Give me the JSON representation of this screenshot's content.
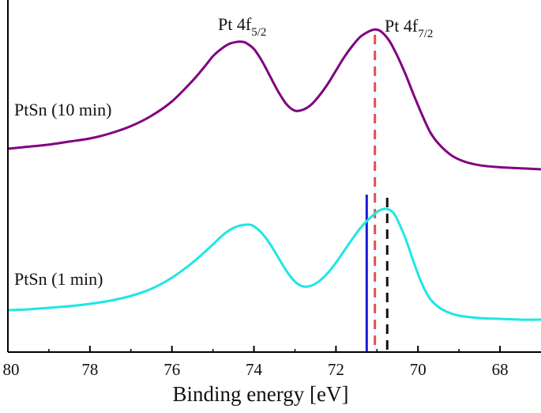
{
  "chart_data": {
    "type": "line",
    "title": "",
    "xlabel": "Binding energy [eV]",
    "ylabel": "",
    "xlim": [
      80,
      67
    ],
    "x_reversed": true,
    "xticks": [
      80,
      78,
      76,
      74,
      72,
      70,
      68
    ],
    "y_axis_visible": false,
    "grid": false,
    "legend": "none",
    "peak_labels": [
      {
        "main": "Pt 4f",
        "sub": "5/2",
        "x": 74.3
      },
      {
        "main": "Pt 4f",
        "sub": "7/2",
        "x": 71.0
      }
    ],
    "series": [
      {
        "name": "PtSn (10 min)",
        "color": "#800080",
        "x": [
          80,
          79.5,
          79,
          78.5,
          78,
          77.5,
          77,
          76.5,
          76,
          75.5,
          75.2,
          75,
          74.8,
          74.6,
          74.4,
          74.3,
          74.2,
          74,
          73.8,
          73.6,
          73.4,
          73.2,
          73,
          72.8,
          72.6,
          72.4,
          72.2,
          72,
          71.8,
          71.6,
          71.4,
          71.2,
          71.05,
          70.9,
          70.7,
          70.5,
          70.3,
          70.1,
          69.9,
          69.7,
          69.5,
          69.2,
          68.9,
          68.5,
          68,
          67.5,
          67
        ],
        "y": [
          0.0,
          0.02,
          0.04,
          0.07,
          0.1,
          0.15,
          0.22,
          0.32,
          0.46,
          0.66,
          0.8,
          0.9,
          0.97,
          1.02,
          1.04,
          1.04,
          1.03,
          0.97,
          0.85,
          0.7,
          0.55,
          0.43,
          0.37,
          0.38,
          0.43,
          0.52,
          0.63,
          0.76,
          0.89,
          1.0,
          1.09,
          1.14,
          1.16,
          1.14,
          1.05,
          0.9,
          0.72,
          0.52,
          0.33,
          0.16,
          0.05,
          -0.06,
          -0.12,
          -0.16,
          -0.18,
          -0.19,
          -0.2
        ]
      },
      {
        "name": "PtSn (1 min)",
        "color": "#1ee6e6",
        "x": [
          80,
          79.5,
          79,
          78.5,
          78,
          77.5,
          77,
          76.5,
          76,
          75.5,
          75,
          74.8,
          74.6,
          74.4,
          74.2,
          74.1,
          74,
          73.8,
          73.6,
          73.4,
          73.2,
          73,
          72.8,
          72.6,
          72.4,
          72.2,
          72,
          71.8,
          71.6,
          71.4,
          71.2,
          71,
          70.9,
          70.8,
          70.7,
          70.6,
          70.5,
          70.3,
          70.1,
          69.9,
          69.7,
          69.5,
          69.3,
          69,
          68.5,
          68,
          67.5,
          67
        ],
        "y": [
          0.0,
          0.01,
          0.03,
          0.05,
          0.08,
          0.12,
          0.18,
          0.27,
          0.41,
          0.6,
          0.83,
          0.93,
          1.01,
          1.06,
          1.08,
          1.08,
          1.06,
          0.97,
          0.83,
          0.66,
          0.49,
          0.36,
          0.3,
          0.31,
          0.37,
          0.47,
          0.6,
          0.75,
          0.9,
          1.04,
          1.15,
          1.24,
          1.27,
          1.28,
          1.27,
          1.23,
          1.14,
          0.9,
          0.6,
          0.33,
          0.14,
          0.04,
          -0.02,
          -0.07,
          -0.1,
          -0.11,
          -0.12,
          -0.12
        ]
      }
    ],
    "reference_lines": [
      {
        "x": 71.05,
        "style": "dashed",
        "color": "#e05050"
      },
      {
        "x": 70.75,
        "style": "dashed",
        "color": "#111111"
      },
      {
        "x": 71.25,
        "style": "solid",
        "color": "#1a1adc"
      }
    ]
  }
}
